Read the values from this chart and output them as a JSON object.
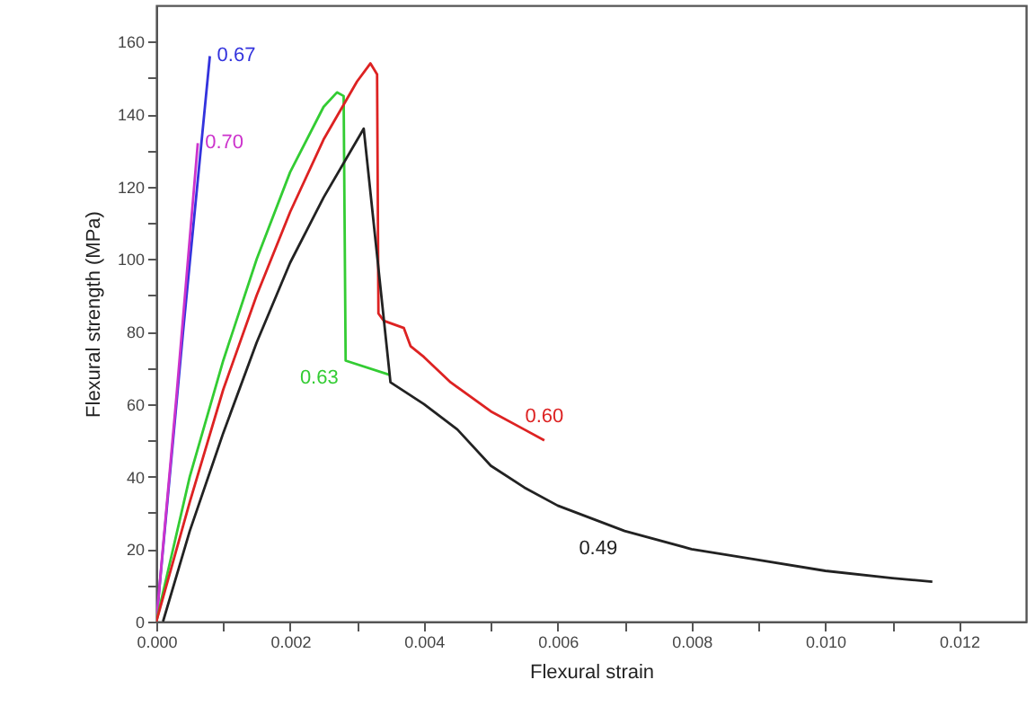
{
  "chart_data": {
    "type": "line",
    "xlabel": "Flexural strain",
    "ylabel": "Flexural strength (MPa)",
    "xlim": [
      0,
      0.013
    ],
    "ylim": [
      0,
      170
    ],
    "xticks": [
      {
        "value": 0,
        "label": "0.000"
      },
      {
        "value": 0.001,
        "label": null
      },
      {
        "value": 0.002,
        "label": "0.002"
      },
      {
        "value": 0.003,
        "label": null
      },
      {
        "value": 0.004,
        "label": "0.004"
      },
      {
        "value": 0.005,
        "label": null
      },
      {
        "value": 0.006,
        "label": "0.006"
      },
      {
        "value": 0.007,
        "label": null
      },
      {
        "value": 0.008,
        "label": "0.008"
      },
      {
        "value": 0.009,
        "label": null
      },
      {
        "value": 0.01,
        "label": "0.010"
      },
      {
        "value": 0.011,
        "label": null
      },
      {
        "value": 0.012,
        "label": "0.012"
      }
    ],
    "yticks": [
      0,
      {
        "value": 10,
        "label": null
      },
      20,
      {
        "value": 30,
        "label": null
      },
      40,
      {
        "value": 50,
        "label": null
      },
      60,
      {
        "value": 70,
        "label": null
      },
      80,
      {
        "value": 90,
        "label": null
      },
      100,
      {
        "value": 110,
        "label": null
      },
      120,
      {
        "value": 130,
        "label": null
      },
      140,
      {
        "value": 150,
        "label": null
      },
      160
    ],
    "grid": false,
    "marker": "none",
    "line_style": "solid",
    "series": [
      {
        "color": "#3333dd",
        "x": [
          0,
          0.0004,
          0.0008
        ],
        "values": [
          0,
          80,
          156
        ]
      },
      {
        "color": "#cc33cc",
        "x": [
          0,
          0.0003,
          0.00062
        ],
        "values": [
          0,
          62,
          132
        ]
      },
      {
        "color": "#33cc33",
        "x": [
          0,
          0.0005,
          0.001,
          0.0015,
          0.002,
          0.0025,
          0.0027,
          0.0028,
          0.00283,
          0.0035
        ],
        "values": [
          0,
          40,
          72,
          100,
          124,
          142,
          146,
          145,
          72,
          68
        ]
      },
      {
        "color": "#dd2222",
        "x": [
          0,
          0.0005,
          0.001,
          0.0015,
          0.002,
          0.0025,
          0.003,
          0.0032,
          0.0033,
          0.00332,
          0.0034,
          0.0037,
          0.0038,
          0.004,
          0.0044,
          0.005,
          0.0055,
          0.0058
        ],
        "values": [
          0,
          33,
          64,
          90,
          113,
          133,
          149,
          154,
          151,
          85,
          83,
          81,
          76,
          73,
          66,
          58,
          53,
          50
        ]
      },
      {
        "color": "#222222",
        "x": [
          0.0001,
          0.0005,
          0.001,
          0.0015,
          0.002,
          0.0025,
          0.0031,
          0.0035,
          0.004,
          0.0045,
          0.005,
          0.0055,
          0.006,
          0.007,
          0.008,
          0.009,
          0.01,
          0.011,
          0.0116
        ],
        "values": [
          0,
          25,
          52,
          77,
          99,
          117,
          136,
          66,
          60,
          53,
          43,
          37,
          32,
          25,
          20,
          17,
          14,
          12,
          11
        ]
      }
    ],
    "annotations": [
      {
        "text": "0.67",
        "x": 0.0008,
        "y": 156
      },
      {
        "text": "0.70",
        "x": 0.00062,
        "y": 132
      },
      {
        "text": "0.63",
        "x": 0.00283,
        "y": 72
      },
      {
        "text": "0.60",
        "x": 0.0058,
        "y": 50
      },
      {
        "text": "0.49",
        "x": 0.007,
        "y": 25
      }
    ]
  }
}
